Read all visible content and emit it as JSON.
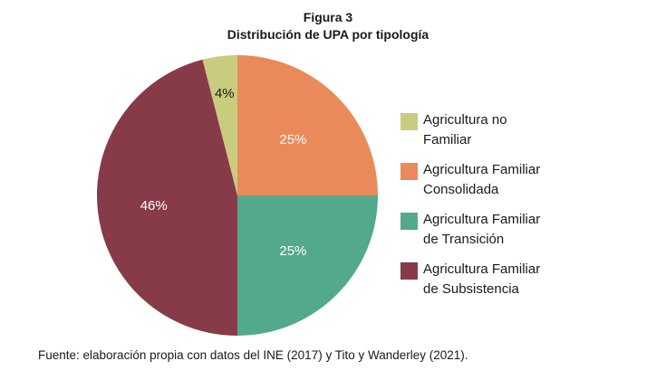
{
  "figure": {
    "number": "Figura 3",
    "title": "Distribución de UPA por tipología"
  },
  "chart_data": {
    "type": "pie",
    "title": "Distribución de UPA por tipología",
    "slices": [
      {
        "label": "Agricultura no Familiar",
        "value": 4,
        "display": "4%",
        "color": "#c9cc7e",
        "label_color": "#1a1a1a"
      },
      {
        "label": "Agricultura Familiar Consolidada",
        "value": 25,
        "display": "25%",
        "color": "#ea8a5b",
        "label_color": "#ffffff"
      },
      {
        "label": "Agricultura Familiar de Transición",
        "value": 25,
        "display": "25%",
        "color": "#52a98c",
        "label_color": "#ffffff"
      },
      {
        "label": "Agricultura Familiar de Subsistencia",
        "value": 46,
        "display": "46%",
        "color": "#873a48",
        "label_color": "#ffffff"
      }
    ],
    "start_angle": "12 o'clock, counter-clockwise for first slice",
    "legend_position": "right"
  },
  "legend": [
    {
      "line1": "Agricultura no",
      "line2": "Familiar",
      "color": "#c9cc7e"
    },
    {
      "line1": "Agricultura Familiar",
      "line2": "Consolidada",
      "color": "#ea8a5b"
    },
    {
      "line1": "Agricultura Familiar",
      "line2": "de Transición",
      "color": "#52a98c"
    },
    {
      "line1": "Agricultura Familiar",
      "line2": "de Subsistencia",
      "color": "#873a48"
    }
  ],
  "source": "Fuente: elaboración propia con datos del INE (2017) y Tito y Wanderley (2021)."
}
